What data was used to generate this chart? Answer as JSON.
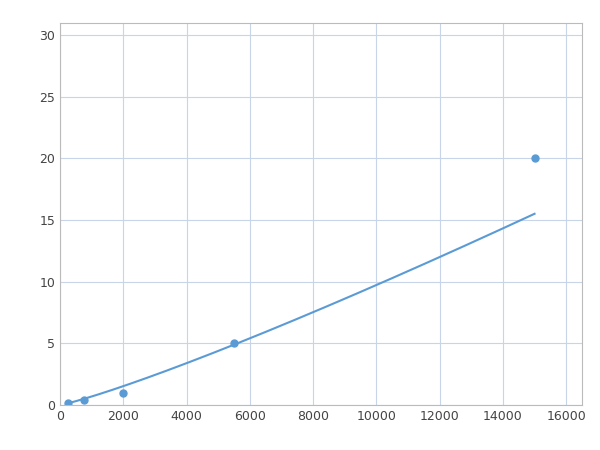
{
  "x": [
    250,
    750,
    2000,
    5500,
    15000
  ],
  "y": [
    0.2,
    0.4,
    1.0,
    5.0,
    20.0
  ],
  "line_color": "#5b9bd5",
  "marker_color": "#5b9bd5",
  "marker_size": 5,
  "marker_style": "o",
  "line_width": 1.5,
  "xlim": [
    0,
    16500
  ],
  "ylim": [
    0,
    31
  ],
  "xticks": [
    0,
    2000,
    4000,
    6000,
    8000,
    10000,
    12000,
    14000,
    16000
  ],
  "yticks": [
    0,
    5,
    10,
    15,
    20,
    25,
    30
  ],
  "grid_color": "#c8d4e8",
  "background_color": "#ffffff",
  "spine_color": "#bbbbbb",
  "figsize": [
    6.0,
    4.5
  ],
  "dpi": 100
}
